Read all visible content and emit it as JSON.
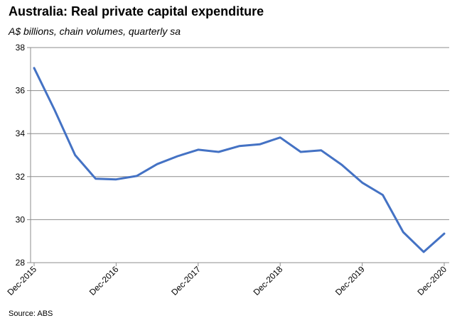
{
  "chart_data": {
    "type": "line",
    "title": "Australia: Real private capital expenditure",
    "subtitle": "A$ billions, chain volumes, quarterly sa",
    "source": "Source: ABS",
    "ylim": [
      28,
      38
    ],
    "y_ticks": [
      28,
      30,
      32,
      34,
      36,
      38
    ],
    "x_tick_labels": [
      "Dec-2015",
      "Dec-2016",
      "Dec-2017",
      "Dec-2018",
      "Dec-2019",
      "Dec-2020"
    ],
    "grid": true,
    "series": [
      {
        "color": "#4472C4",
        "x": [
          "Dec-2015",
          "Mar-2016",
          "Jun-2016",
          "Sep-2016",
          "Dec-2016",
          "Mar-2017",
          "Jun-2017",
          "Sep-2017",
          "Dec-2017",
          "Mar-2018",
          "Jun-2018",
          "Sep-2018",
          "Dec-2018",
          "Mar-2019",
          "Jun-2019",
          "Sep-2019",
          "Dec-2019",
          "Mar-2020",
          "Jun-2020",
          "Sep-2020",
          "Dec-2020"
        ],
        "values": [
          37.05,
          35.1,
          33.0,
          31.9,
          31.87,
          32.03,
          32.58,
          32.95,
          33.25,
          33.15,
          33.42,
          33.5,
          33.82,
          33.15,
          33.22,
          32.55,
          31.72,
          31.15,
          29.42,
          28.5,
          29.35
        ]
      }
    ]
  }
}
